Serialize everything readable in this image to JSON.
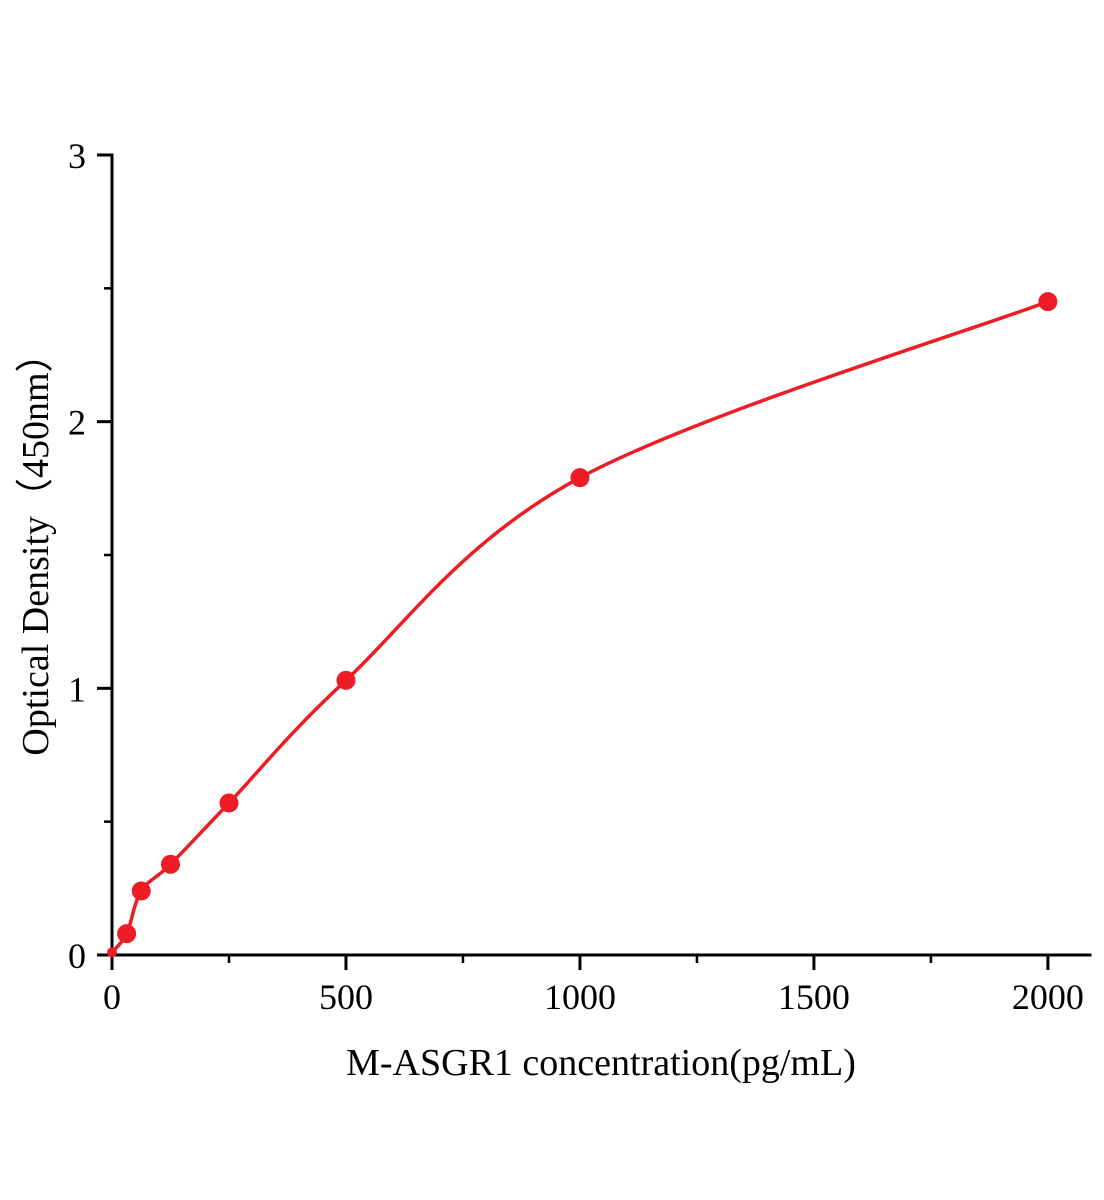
{
  "page": {
    "background": "#ffffff"
  },
  "chart_data": {
    "type": "scatter",
    "title": "",
    "xlabel": "M-ASGR1 concentration(pg/mL)",
    "ylabel": "Optical Density（450nm）",
    "x": [
      0,
      31.25,
      62.5,
      125,
      250,
      500,
      1000,
      2000
    ],
    "y": [
      0.01,
      0.08,
      0.24,
      0.34,
      0.57,
      1.03,
      1.79,
      2.45
    ],
    "fit": "smooth saturating standard curve through all data points",
    "xlim": [
      0,
      2090
    ],
    "ylim": [
      0,
      3
    ],
    "x_major_ticks": [
      0,
      500,
      1000,
      1500,
      2000
    ],
    "x_minor_ticks": [
      250,
      750,
      1250,
      1750
    ],
    "y_major_ticks": [
      0,
      1,
      2,
      3
    ],
    "y_minor_ticks": [
      0.5,
      1.5,
      2.5
    ],
    "grid": false,
    "legend": null,
    "colors": {
      "line": "#ee1c24",
      "marker": "#ee1c24",
      "axis": "#000000",
      "text": "#000000"
    }
  }
}
